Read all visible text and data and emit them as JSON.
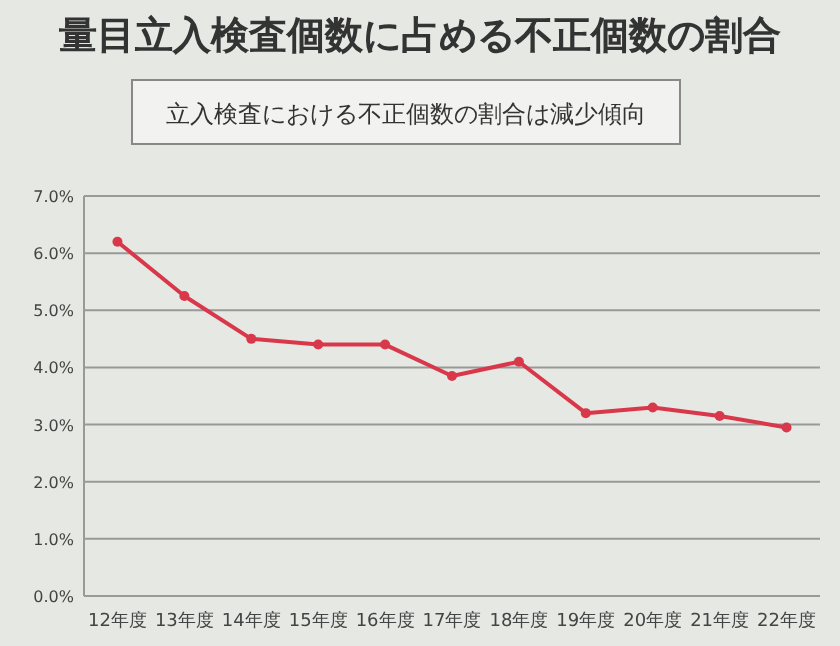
{
  "chart_data": {
    "type": "line",
    "title": "量目立入検査個数に占める不正個数の割合",
    "subtitle": "立入検査における不正個数の割合は減少傾向",
    "categories": [
      "12年度",
      "13年度",
      "14年度",
      "15年度",
      "16年度",
      "17年度",
      "18年度",
      "19年度",
      "20年度",
      "21年度",
      "22年度"
    ],
    "series": [
      {
        "color": "#d9384a",
        "values": [
          6.2,
          5.25,
          4.5,
          4.4,
          4.4,
          3.85,
          4.1,
          3.2,
          3.3,
          3.15,
          2.95
        ]
      }
    ],
    "ylim": [
      0,
      7
    ],
    "yticks": [
      {
        "value": 0,
        "label": "0.0%"
      },
      {
        "value": 1,
        "label": "1.0%"
      },
      {
        "value": 2,
        "label": "2.0%"
      },
      {
        "value": 3,
        "label": "3.0%"
      },
      {
        "value": 4,
        "label": "4.0%"
      },
      {
        "value": 5,
        "label": "5.0%"
      },
      {
        "value": 6,
        "label": "6.0%"
      },
      {
        "value": 7,
        "label": "7.0%"
      }
    ],
    "grid": "y",
    "marker": "circle",
    "line_style": "solid"
  }
}
